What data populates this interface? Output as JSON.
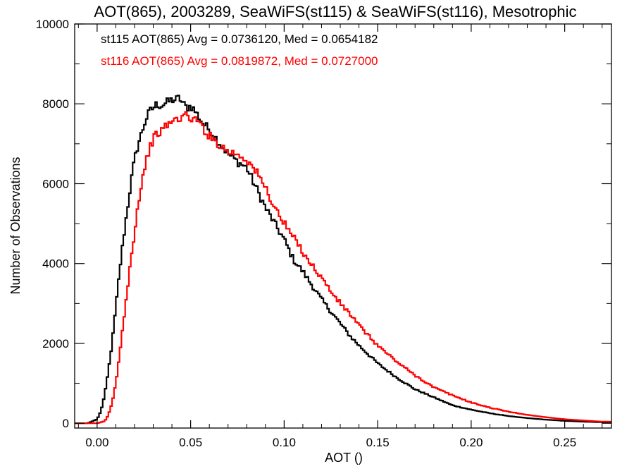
{
  "chart_data": {
    "type": "line",
    "title": "AOT(865), 2003289, SeaWiFS(st115) & SeaWiFS(st116), Mesotrophic",
    "xlabel": "AOT ()",
    "ylabel": "Number of Observations",
    "xlim": [
      -0.012,
      0.275
    ],
    "ylim": [
      -120,
      10000
    ],
    "xticks": [
      0.0,
      0.05,
      0.1,
      0.15,
      0.2,
      0.25
    ],
    "xtick_labels": [
      "0.00",
      "0.05",
      "0.10",
      "0.15",
      "0.20",
      "0.25"
    ],
    "yticks": [
      0,
      2000,
      4000,
      6000,
      8000,
      10000
    ],
    "ytick_labels": [
      "0",
      "2000",
      "4000",
      "6000",
      "8000",
      "10000"
    ],
    "grid": false,
    "step": "histogram",
    "annotations": [
      {
        "text": "st115 AOT(865) Avg = 0.0736120, Med = 0.0654182",
        "color": "#000000"
      },
      {
        "text": "st116 AOT(865) Avg = 0.0819872, Med = 0.0727000",
        "color": "#ff0000"
      }
    ],
    "series": [
      {
        "color": "#000000",
        "x": [
          -0.01,
          -0.005,
          0.0,
          0.002,
          0.004,
          0.006,
          0.008,
          0.01,
          0.012,
          0.014,
          0.016,
          0.018,
          0.02,
          0.022,
          0.024,
          0.026,
          0.028,
          0.03,
          0.032,
          0.034,
          0.036,
          0.038,
          0.04,
          0.042,
          0.044,
          0.046,
          0.048,
          0.05,
          0.052,
          0.054,
          0.056,
          0.058,
          0.06,
          0.065,
          0.07,
          0.075,
          0.08,
          0.085,
          0.09,
          0.095,
          0.1,
          0.105,
          0.11,
          0.115,
          0.12,
          0.125,
          0.13,
          0.135,
          0.14,
          0.15,
          0.16,
          0.17,
          0.18,
          0.19,
          0.2,
          0.21,
          0.22,
          0.23,
          0.24,
          0.25,
          0.26,
          0.27
        ],
        "y": [
          0,
          0,
          100,
          300,
          700,
          1300,
          2000,
          2900,
          3800,
          4600,
          5300,
          6000,
          6600,
          7000,
          7300,
          7600,
          7800,
          7900,
          8000,
          7950,
          8000,
          8050,
          8100,
          8100,
          8150,
          8000,
          7900,
          7950,
          7850,
          7700,
          7550,
          7450,
          7350,
          7050,
          6750,
          6550,
          6400,
          5900,
          5400,
          5000,
          4600,
          4100,
          3800,
          3450,
          3100,
          2800,
          2500,
          2200,
          1950,
          1500,
          1150,
          850,
          650,
          450,
          340,
          250,
          180,
          130,
          90,
          60,
          40,
          25
        ]
      },
      {
        "color": "#ff0000",
        "x": [
          -0.01,
          0.0,
          0.004,
          0.006,
          0.008,
          0.01,
          0.012,
          0.014,
          0.016,
          0.018,
          0.02,
          0.022,
          0.024,
          0.026,
          0.028,
          0.03,
          0.032,
          0.034,
          0.036,
          0.038,
          0.04,
          0.042,
          0.044,
          0.046,
          0.048,
          0.05,
          0.052,
          0.054,
          0.056,
          0.058,
          0.06,
          0.065,
          0.07,
          0.075,
          0.08,
          0.085,
          0.09,
          0.095,
          0.1,
          0.105,
          0.11,
          0.115,
          0.12,
          0.125,
          0.13,
          0.135,
          0.14,
          0.15,
          0.16,
          0.17,
          0.18,
          0.19,
          0.2,
          0.21,
          0.22,
          0.23,
          0.24,
          0.25,
          0.26,
          0.27
        ],
        "y": [
          0,
          0,
          50,
          200,
          500,
          1000,
          1700,
          2500,
          3300,
          4100,
          4800,
          5500,
          6100,
          6500,
          6900,
          7100,
          7250,
          7300,
          7400,
          7500,
          7550,
          7600,
          7650,
          7700,
          7700,
          7650,
          7600,
          7550,
          7450,
          7300,
          7200,
          7000,
          6800,
          6750,
          6600,
          6300,
          5900,
          5400,
          5000,
          4650,
          4300,
          3950,
          3650,
          3300,
          3000,
          2750,
          2450,
          1950,
          1550,
          1200,
          900,
          700,
          520,
          390,
          290,
          210,
          150,
          100,
          70,
          40
        ]
      }
    ]
  }
}
